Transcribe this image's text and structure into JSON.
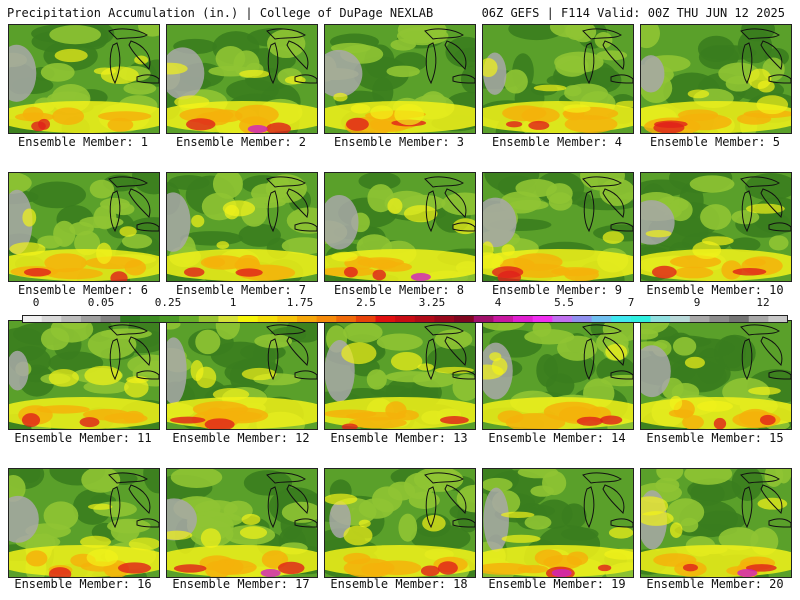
{
  "header": {
    "title": "Precipitation Accumulation (in.) | College of DuPage NEXLAB",
    "run_info": "06Z GEFS | F114 Valid: 00Z THU JUN 12 2025"
  },
  "panels": [
    {
      "label": "Ensemble Member: 1"
    },
    {
      "label": "Ensemble Member: 2"
    },
    {
      "label": "Ensemble Member: 3"
    },
    {
      "label": "Ensemble Member: 4"
    },
    {
      "label": "Ensemble Member: 5"
    },
    {
      "label": "Ensemble Member: 6"
    },
    {
      "label": "Ensemble Member: 7"
    },
    {
      "label": "Ensemble Member: 8"
    },
    {
      "label": "Ensemble Member: 9"
    },
    {
      "label": "Ensemble Member: 10"
    },
    {
      "label": "Ensemble Member: 11"
    },
    {
      "label": "Ensemble Member: 12"
    },
    {
      "label": "Ensemble Member: 13"
    },
    {
      "label": "Ensemble Member: 14"
    },
    {
      "label": "Ensemble Member: 15"
    },
    {
      "label": "Ensemble Member: 16"
    },
    {
      "label": "Ensemble Member: 17"
    },
    {
      "label": "Ensemble Member: 18"
    },
    {
      "label": "Ensemble Member: 19"
    },
    {
      "label": "Ensemble Member: 20"
    }
  ],
  "colorbar": {
    "tick_labels": [
      "0",
      "0.05",
      "0.25",
      "1",
      "1.75",
      "2.5",
      "3.25",
      "4",
      "5.5",
      "7",
      "9",
      "12"
    ],
    "colors": [
      "#f0f0f0",
      "#d8d8d8",
      "#bdbdbd",
      "#a0a0a0",
      "#828282",
      "#2f7a1f",
      "#3c8c22",
      "#4a9a25",
      "#67ae2a",
      "#9ac532",
      "#d6e23a",
      "#f5f50a",
      "#f5de0a",
      "#f5c40a",
      "#f5a60a",
      "#f58a0a",
      "#f06a0a",
      "#e8420a",
      "#e01010",
      "#c80c14",
      "#b00a18",
      "#98081c",
      "#800620",
      "#a0106a",
      "#c818a0",
      "#e020d0",
      "#f030f0",
      "#c070f0",
      "#9090f0",
      "#70c0f0",
      "#40e8f0",
      "#30f0e0",
      "#90e0e0",
      "#b8d8d8",
      "#a8a8a8",
      "#8c8c8c",
      "#747474",
      "#a8a8a8",
      "#c8c8c8"
    ]
  },
  "palette": {
    "green_dark": "#3a7d1e",
    "green": "#5aa02a",
    "green_light": "#8fc433",
    "yellow": "#f2f21a",
    "orange": "#f5b20a",
    "red": "#e0201a",
    "magenta": "#d020c0",
    "gray": "#a8a8a8"
  }
}
